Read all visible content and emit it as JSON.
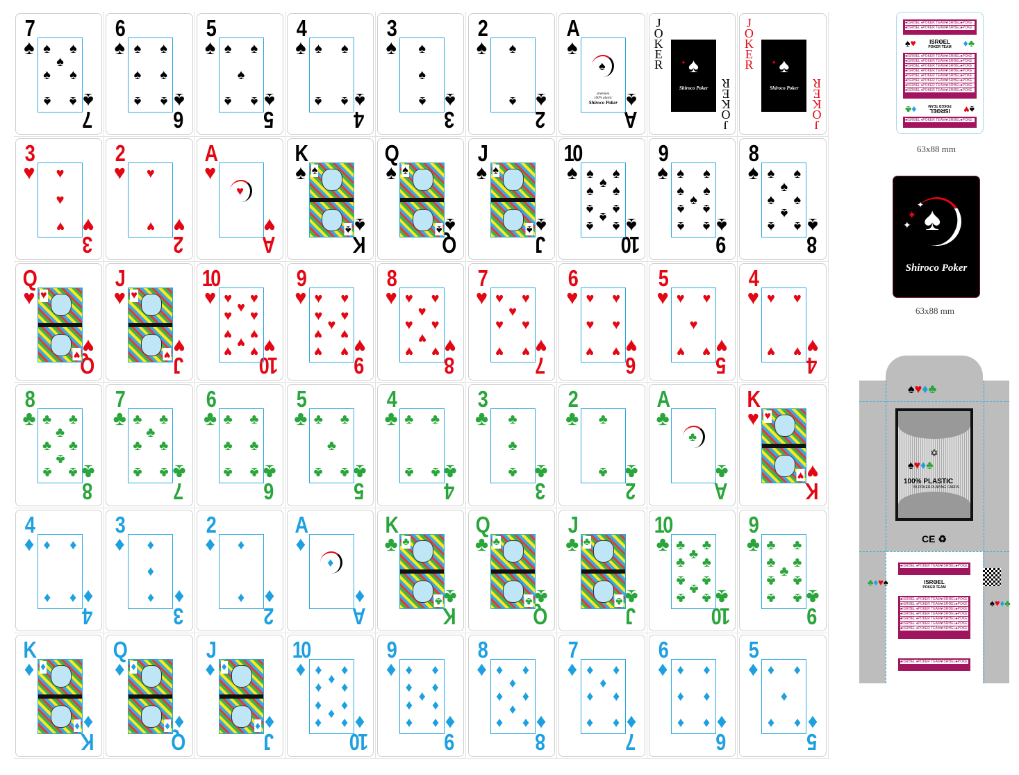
{
  "suit_colors": {
    "spade": "#000000",
    "heart": "#e30613",
    "club": "#2aa53b",
    "diamond": "#1ea0e0"
  },
  "suit_glyphs": {
    "spade": "♠",
    "heart": "♥",
    "club": "♣",
    "diamond": "♦"
  },
  "frame_color": "#29a8e0",
  "sheet": {
    "rows": [
      [
        {
          "rank": "7",
          "suit": "spade"
        },
        {
          "rank": "6",
          "suit": "spade"
        },
        {
          "rank": "5",
          "suit": "spade"
        },
        {
          "rank": "4",
          "suit": "spade"
        },
        {
          "rank": "3",
          "suit": "spade"
        },
        {
          "rank": "2",
          "suit": "spade"
        },
        {
          "rank": "A",
          "suit": "spade"
        },
        {
          "rank": "JOKER",
          "suit": "joker-black"
        },
        {
          "rank": "JOKER",
          "suit": "joker-red"
        }
      ],
      [
        {
          "rank": "3",
          "suit": "heart"
        },
        {
          "rank": "2",
          "suit": "heart"
        },
        {
          "rank": "A",
          "suit": "heart"
        },
        {
          "rank": "K",
          "suit": "spade"
        },
        {
          "rank": "Q",
          "suit": "spade"
        },
        {
          "rank": "J",
          "suit": "spade"
        },
        {
          "rank": "10",
          "suit": "spade"
        },
        {
          "rank": "9",
          "suit": "spade"
        },
        {
          "rank": "8",
          "suit": "spade"
        }
      ],
      [
        {
          "rank": "Q",
          "suit": "heart"
        },
        {
          "rank": "J",
          "suit": "heart"
        },
        {
          "rank": "10",
          "suit": "heart"
        },
        {
          "rank": "9",
          "suit": "heart"
        },
        {
          "rank": "8",
          "suit": "heart"
        },
        {
          "rank": "7",
          "suit": "heart"
        },
        {
          "rank": "6",
          "suit": "heart"
        },
        {
          "rank": "5",
          "suit": "heart"
        },
        {
          "rank": "4",
          "suit": "heart"
        }
      ],
      [
        {
          "rank": "8",
          "suit": "club"
        },
        {
          "rank": "7",
          "suit": "club"
        },
        {
          "rank": "6",
          "suit": "club"
        },
        {
          "rank": "5",
          "suit": "club"
        },
        {
          "rank": "4",
          "suit": "club"
        },
        {
          "rank": "3",
          "suit": "club"
        },
        {
          "rank": "2",
          "suit": "club"
        },
        {
          "rank": "A",
          "suit": "club"
        },
        {
          "rank": "K",
          "suit": "heart"
        }
      ],
      [
        {
          "rank": "4",
          "suit": "diamond"
        },
        {
          "rank": "3",
          "suit": "diamond"
        },
        {
          "rank": "2",
          "suit": "diamond"
        },
        {
          "rank": "A",
          "suit": "diamond"
        },
        {
          "rank": "K",
          "suit": "club"
        },
        {
          "rank": "Q",
          "suit": "club"
        },
        {
          "rank": "J",
          "suit": "club"
        },
        {
          "rank": "10",
          "suit": "club"
        },
        {
          "rank": "9",
          "suit": "club"
        }
      ],
      [
        {
          "rank": "K",
          "suit": "diamond"
        },
        {
          "rank": "Q",
          "suit": "diamond"
        },
        {
          "rank": "J",
          "suit": "diamond"
        },
        {
          "rank": "10",
          "suit": "diamond"
        },
        {
          "rank": "9",
          "suit": "diamond"
        },
        {
          "rank": "8",
          "suit": "diamond"
        },
        {
          "rank": "7",
          "suit": "diamond"
        },
        {
          "rank": "6",
          "suit": "diamond"
        },
        {
          "rank": "5",
          "suit": "diamond"
        }
      ]
    ]
  },
  "ace_spade_text": {
    "line1": "premium",
    "line2": "100% plastic",
    "brand": "Shiroco Poker"
  },
  "brand": "Shiroco Poker",
  "back_pattern": {
    "band_text": "♣ISRΘEL ♦POKER TEAM♥ISRΘEL♣POKE",
    "team_name": "ISRΘEL",
    "team_sub": "POKER TEAM",
    "band_color": "#a0155e"
  },
  "backs": [
    {
      "size_label": "63x88 mm"
    },
    {
      "size_label": "63x88 mm"
    }
  ],
  "box": {
    "headline": "100% PLASTIC",
    "subline": "55 POKER PLAYING CARDS",
    "ce_mark": "CE"
  }
}
